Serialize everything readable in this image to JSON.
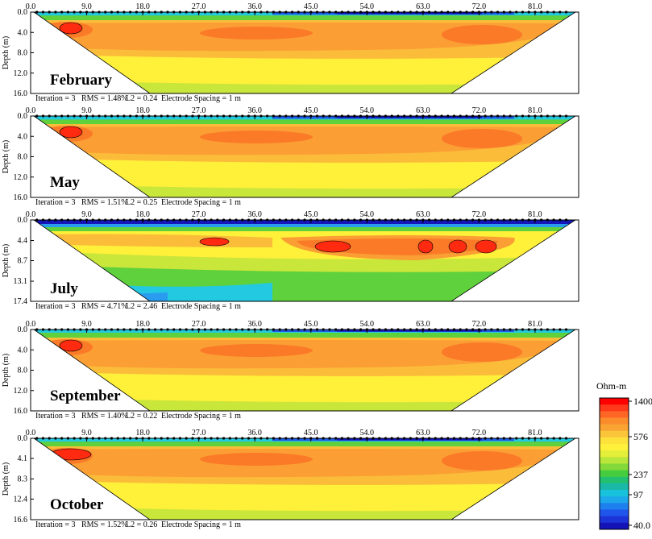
{
  "chart_data": {
    "type": "heatmap",
    "legend": {
      "title": "Ohm-m",
      "ticks": [
        "1400",
        "576",
        "237",
        "97",
        "40.0"
      ],
      "colors": [
        "#ff0000",
        "#ff3a1a",
        "#ff6626",
        "#fb8c2c",
        "#f9a432",
        "#fbc53a",
        "#fde23c",
        "#fff03c",
        "#e3ef3a",
        "#b8e63a",
        "#84d93a",
        "#46cc3f",
        "#22c070",
        "#1ab8a8",
        "#18c2dc",
        "#1ca8ea",
        "#1e7fee",
        "#1f55ea",
        "#1c33d8",
        "#1413b8"
      ]
    },
    "x_ticks": [
      "0.0",
      "9.0",
      "18.0",
      "27.0",
      "36.0",
      "45.0",
      "54.0",
      "63.0",
      "72.0",
      "81.0"
    ],
    "xlim": [
      0,
      88
    ],
    "ylabel": "Depth (m)",
    "panels": [
      {
        "label": "February",
        "y_ticks": [
          "0.0",
          "4.0",
          "8.0",
          "12.0",
          "16.0"
        ],
        "max_depth": 16.0,
        "cold": 0.3,
        "footer": {
          "iteration": "Iteration = 3",
          "rms": "RMS = 1.48%",
          "l2": "L2 = 0.24",
          "spacing": "Electrode Spacing = 1 m"
        }
      },
      {
        "label": "May",
        "y_ticks": [
          "0.0",
          "4.0",
          "8.0",
          "12.0",
          "16.0"
        ],
        "max_depth": 16.0,
        "cold": 0.35,
        "footer": {
          "iteration": "Iteration = 3",
          "rms": "RMS = 1.51%",
          "l2": "L2 = 0.25",
          "spacing": "Electrode Spacing = 1 m"
        }
      },
      {
        "label": "July",
        "y_ticks": [
          "0.0",
          "4.4",
          "8.7",
          "13.1",
          "17.4"
        ],
        "max_depth": 17.4,
        "cold": 1.0,
        "footer": {
          "iteration": "Iteration = 3",
          "rms": "RMS = 4.71%",
          "l2": "L2 = 2.46",
          "spacing": "Electrode Spacing = 1 m"
        }
      },
      {
        "label": "September",
        "y_ticks": [
          "0.0",
          "4.0",
          "8.0",
          "12.0",
          "16.0"
        ],
        "max_depth": 16.0,
        "cold": 0.25,
        "footer": {
          "iteration": "Iteration = 3",
          "rms": "RMS = 1.40%",
          "l2": "L2 = 0.22",
          "spacing": "Electrode Spacing = 1 m"
        }
      },
      {
        "label": "October",
        "y_ticks": [
          "0.0",
          "4.1",
          "8.3",
          "12.4",
          "16.6"
        ],
        "max_depth": 16.6,
        "cold": 0.3,
        "footer": {
          "iteration": "Iteration = 3",
          "rms": "RMS = 1.52%",
          "l2": "L2 = 0.26",
          "spacing": "Electrode Spacing = 1 m"
        }
      }
    ]
  }
}
